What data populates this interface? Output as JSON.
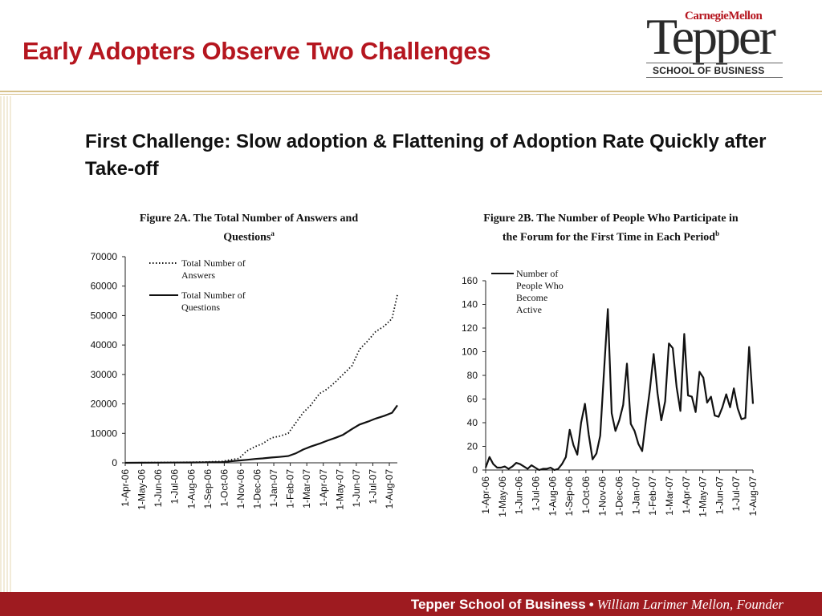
{
  "slide": {
    "title": "Early Adopters Observe Two Challenges",
    "subtitle": "First Challenge: Slow adoption & Flattening of Adoption Rate Quickly after Take-off"
  },
  "logo": {
    "university": "CarnegieMellon",
    "name": "Tepper",
    "school": "SCHOOL OF BUSINESS"
  },
  "footer": {
    "name": "Tepper School of Business",
    "separator": "•",
    "founder": "William Larimer Mellon, Founder"
  },
  "colors": {
    "title": "#b5161f",
    "footer": "#9e1b20"
  },
  "chart_data": [
    {
      "type": "line",
      "title": "Figure 2A. The Total Number of Answers and Questions",
      "title_superscript": "a",
      "ylim": [
        0,
        70000
      ],
      "yticks": [
        "0",
        "10000",
        "20000",
        "30000",
        "40000",
        "50000",
        "60000",
        "70000"
      ],
      "x_labels": [
        "1-Apr-06",
        "1-May-06",
        "1-Jun-06",
        "1-Jul-06",
        "1-Aug-06",
        "1-Sep-06",
        "1-Oct-06",
        "1-Nov-06",
        "1-Dec-06",
        "1-Jan-07",
        "1-Feb-07",
        "1-Mar-07",
        "1-Apr-07",
        "1-May-07",
        "1-Jun-07",
        "1-Jul-07",
        "1-Aug-07"
      ],
      "legend_position": "top-left",
      "series": [
        {
          "name": "Total Number of Answers",
          "style": "dotted",
          "x": [
            "1-Apr-06",
            "1-May-06",
            "1-Jun-06",
            "1-Jul-06",
            "1-Aug-06",
            "1-Sep-06",
            "1-Oct-06",
            "15-Oct-06",
            "1-Nov-06",
            "15-Nov-06",
            "1-Dec-06",
            "15-Dec-06",
            "1-Jan-07",
            "15-Jan-07",
            "1-Feb-07",
            "15-Feb-07",
            "1-Mar-07",
            "15-Mar-07",
            "1-Apr-07",
            "15-Apr-07",
            "1-May-07",
            "15-May-07",
            "1-Jun-07",
            "15-Jun-07",
            "1-Jul-07",
            "15-Jul-07",
            "1-Aug-07",
            "15-Aug-07",
            "25-Aug-07"
          ],
          "values": [
            0,
            50,
            100,
            150,
            200,
            300,
            500,
            1000,
            1500,
            4000,
            5500,
            6500,
            8500,
            9000,
            10000,
            13500,
            17000,
            19500,
            23500,
            25000,
            27500,
            30000,
            33000,
            38500,
            41500,
            44500,
            46500,
            49000,
            57000
          ]
        },
        {
          "name": "Total Number of Questions",
          "style": "solid",
          "x": [
            "1-Apr-06",
            "1-May-06",
            "1-Jun-06",
            "1-Jul-06",
            "1-Aug-06",
            "1-Sep-06",
            "1-Oct-06",
            "15-Oct-06",
            "1-Nov-06",
            "15-Nov-06",
            "1-Dec-06",
            "15-Dec-06",
            "1-Jan-07",
            "15-Jan-07",
            "1-Feb-07",
            "15-Feb-07",
            "1-Mar-07",
            "15-Mar-07",
            "1-Apr-07",
            "15-Apr-07",
            "1-May-07",
            "15-May-07",
            "1-Jun-07",
            "15-Jun-07",
            "1-Jul-07",
            "15-Jul-07",
            "1-Aug-07",
            "15-Aug-07",
            "25-Aug-07"
          ],
          "values": [
            0,
            30,
            60,
            90,
            120,
            150,
            250,
            500,
            800,
            1000,
            1300,
            1500,
            1800,
            2000,
            2300,
            3200,
            4500,
            5500,
            6500,
            7500,
            8500,
            9500,
            11500,
            13000,
            14000,
            15000,
            16000,
            17000,
            19500
          ]
        }
      ]
    },
    {
      "type": "line",
      "title": "Figure 2B. The Number of People Who Participate in the Forum for the First Time in Each Period",
      "title_superscript": "b",
      "ylim": [
        0,
        160
      ],
      "yticks": [
        "0",
        "20",
        "40",
        "60",
        "80",
        "100",
        "120",
        "140",
        "160"
      ],
      "x_labels": [
        "1-Apr-06",
        "1-May-06",
        "1-Jun-06",
        "1-Jul-06",
        "1-Aug-06",
        "1-Sep-06",
        "1-Oct-06",
        "1-Nov-06",
        "1-Dec-06",
        "1-Jan-07",
        "1-Feb-07",
        "1-Mar-07",
        "1-Apr-07",
        "1-May-07",
        "1-Jun-07",
        "1-Jul-07",
        "1-Aug-07"
      ],
      "legend_position": "top-left",
      "series": [
        {
          "name": "Number of People Who Become Active",
          "style": "solid",
          "values": [
            2,
            11,
            5,
            2,
            2,
            3,
            1,
            3,
            6,
            5,
            3,
            1,
            4,
            2,
            0,
            1,
            1,
            2,
            0,
            1,
            5,
            11,
            34,
            21,
            13,
            40,
            56,
            30,
            9,
            14,
            29,
            84,
            136,
            48,
            33,
            42,
            55,
            90,
            39,
            33,
            22,
            16,
            43,
            68,
            98,
            65,
            42,
            58,
            107,
            103,
            70,
            50,
            115,
            63,
            62,
            49,
            83,
            78,
            57,
            62,
            46,
            45,
            53,
            64,
            53,
            69,
            52,
            43,
            44,
            104,
            56
          ]
        }
      ]
    }
  ]
}
